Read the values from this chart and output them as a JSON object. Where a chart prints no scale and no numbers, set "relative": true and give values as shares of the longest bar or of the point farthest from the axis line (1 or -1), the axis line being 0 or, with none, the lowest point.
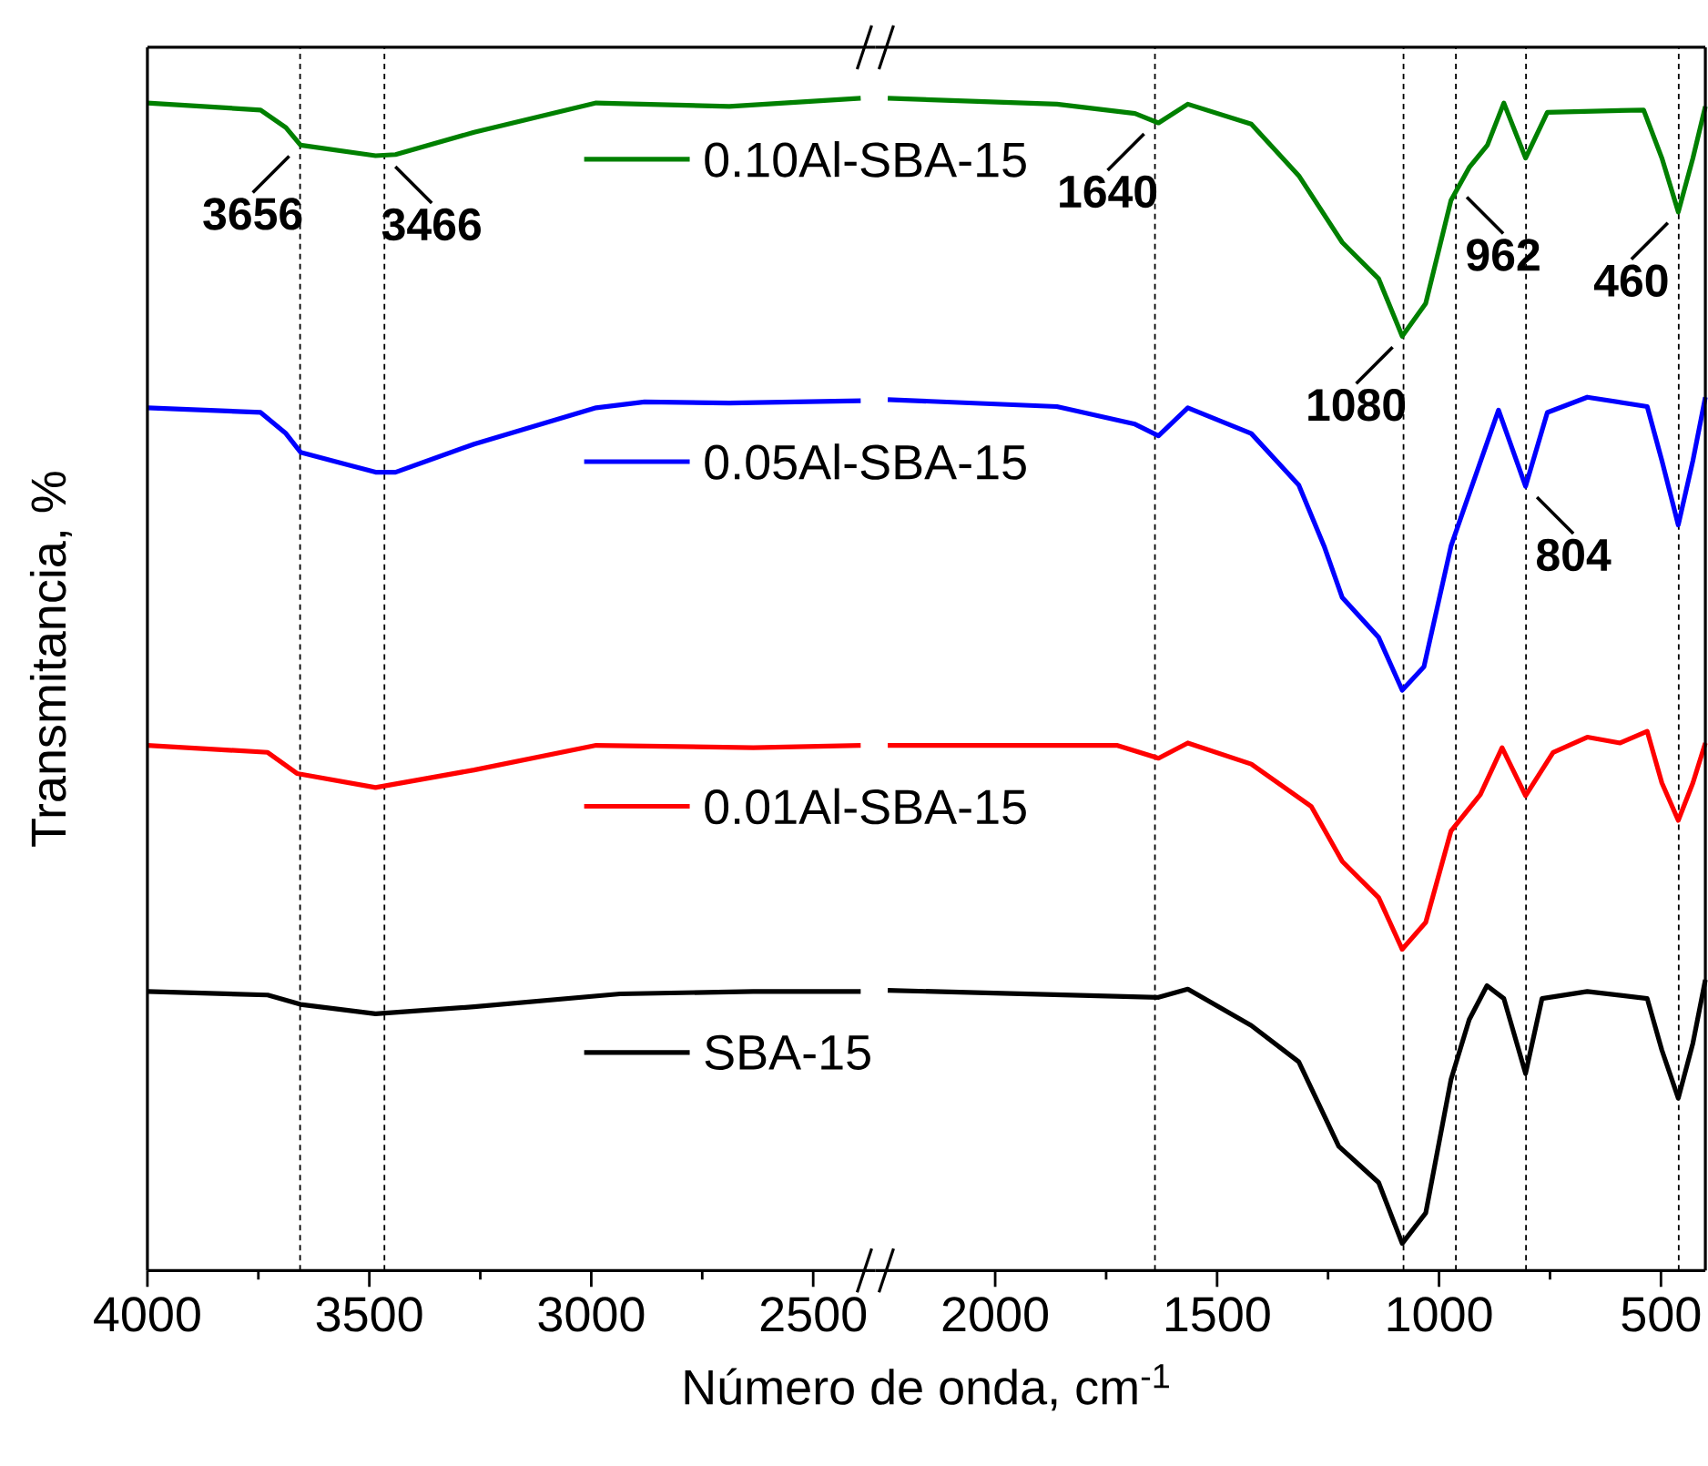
{
  "chart_data": [
    {
      "type": "line",
      "relative": true,
      "legend": "top",
      "ylabel": "Transmitancia, %",
      "xlim": [
        4000,
        2360
      ],
      "xticks": [
        4000,
        {
          "value": 3750,
          "label": null
        },
        3500,
        {
          "value": 3250,
          "label": null
        },
        3000,
        {
          "value": 2750,
          "label": null
        },
        2500
      ],
      "series": [
        {
          "name": "0.10Al-SBA-15",
          "color": "#008000",
          "x": [
            4000,
            3745,
            3688,
            3655,
            3486,
            3441,
            3264,
            2989,
            2689,
            2393
          ],
          "values": [
            0.996,
            0.99,
            0.975,
            0.96,
            0.951,
            0.952,
            0.971,
            0.996,
            0.993,
            1.0
          ]
        },
        {
          "name": "0.05Al-SBA-15",
          "color": "#0000ff",
          "x": [
            4000,
            3745,
            3688,
            3655,
            3486,
            3441,
            3264,
            2989,
            2880,
            2689,
            2393
          ],
          "values": [
            0.736,
            0.732,
            0.714,
            0.698,
            0.681,
            0.681,
            0.705,
            0.736,
            0.741,
            0.74,
            0.742
          ]
        },
        {
          "name": "0.01Al-SBA-15",
          "color": "#ff0000",
          "x": [
            4000,
            3729,
            3663,
            3486,
            3264,
            2989,
            2635,
            2393
          ],
          "values": [
            0.448,
            0.442,
            0.424,
            0.412,
            0.427,
            0.448,
            0.446,
            0.448
          ]
        },
        {
          "name": "SBA-15",
          "color": "#000000",
          "x": [
            4000,
            3729,
            3655,
            3486,
            3264,
            2935,
            2635,
            2393
          ],
          "values": [
            0.238,
            0.235,
            0.227,
            0.219,
            0.225,
            0.236,
            0.238,
            0.238
          ]
        }
      ],
      "ref_lines": [
        {
          "axis": "x",
          "value": 3656,
          "color": "#000000",
          "line_style": "dashed"
        },
        {
          "axis": "x",
          "value": 3466,
          "color": "#000000",
          "line_style": "dashed"
        }
      ],
      "annotations": [
        {
          "text": "3656",
          "x": 3656,
          "y": 0.96
        },
        {
          "text": "3466",
          "x": 3466,
          "y": 0.951
        }
      ]
    },
    {
      "type": "line",
      "relative": true,
      "xlabel": "Número de onda, cm$^{-1}$",
      "xlim": [
        2270,
        400
      ],
      "xticks": [
        2000,
        {
          "value": 1750,
          "label": null
        },
        1500,
        {
          "value": 1250,
          "label": null
        },
        1000,
        {
          "value": 750,
          "label": null
        },
        500
      ],
      "series": [
        {
          "color": "#008000",
          "x": [
            2242,
            1861,
            1685,
            1632,
            1566,
            1423,
            1316,
            1218,
            1136,
            1083,
            1030,
            973,
            932,
            891,
            854,
            805,
            756,
            539,
            498,
            461,
            428,
            400
          ],
          "values": [
            1.0,
            0.995,
            0.987,
            0.979,
            0.995,
            0.978,
            0.934,
            0.877,
            0.846,
            0.797,
            0.825,
            0.913,
            0.941,
            0.96,
            0.996,
            0.949,
            0.988,
            0.99,
            0.949,
            0.903,
            0.949,
            0.993
          ]
        },
        {
          "color": "#0000ff",
          "x": [
            2242,
            1861,
            1685,
            1632,
            1566,
            1423,
            1316,
            1259,
            1218,
            1136,
            1083,
            1034,
            973,
            940,
            866,
            805,
            756,
            666,
            531,
            498,
            461,
            428,
            400
          ],
          "values": [
            0.743,
            0.737,
            0.722,
            0.712,
            0.736,
            0.714,
            0.67,
            0.618,
            0.574,
            0.54,
            0.495,
            0.515,
            0.618,
            0.654,
            0.734,
            0.669,
            0.732,
            0.745,
            0.737,
            0.691,
            0.636,
            0.691,
            0.745
          ]
        },
        {
          "color": "#ff0000",
          "x": [
            2242,
            1726,
            1632,
            1566,
            1423,
            1288,
            1218,
            1136,
            1083,
            1030,
            973,
            907,
            858,
            805,
            743,
            666,
            592,
            531,
            498,
            461,
            428,
            400
          ],
          "values": [
            0.448,
            0.448,
            0.437,
            0.45,
            0.432,
            0.396,
            0.349,
            0.318,
            0.274,
            0.297,
            0.375,
            0.406,
            0.446,
            0.405,
            0.442,
            0.455,
            0.45,
            0.46,
            0.416,
            0.384,
            0.416,
            0.45
          ]
        },
        {
          "color": "#000000",
          "x": [
            2242,
            1632,
            1566,
            1423,
            1316,
            1226,
            1136,
            1083,
            1030,
            973,
            932,
            892,
            854,
            805,
            768,
            666,
            531,
            498,
            461,
            428,
            400
          ],
          "values": [
            0.239,
            0.233,
            0.24,
            0.209,
            0.178,
            0.106,
            0.075,
            0.023,
            0.049,
            0.163,
            0.214,
            0.243,
            0.232,
            0.168,
            0.232,
            0.238,
            0.232,
            0.188,
            0.147,
            0.194,
            0.248
          ]
        }
      ],
      "ref_lines": [
        {
          "axis": "x",
          "value": 1640,
          "color": "#000000",
          "line_style": "dashed"
        },
        {
          "axis": "x",
          "value": 1080,
          "color": "#000000",
          "line_style": "dashed"
        },
        {
          "axis": "x",
          "value": 962,
          "color": "#000000",
          "line_style": "dashed"
        },
        {
          "axis": "x",
          "value": 804,
          "color": "#000000",
          "line_style": "dashed"
        },
        {
          "axis": "x",
          "value": 460,
          "color": "#000000",
          "line_style": "dashed"
        }
      ],
      "annotations": [
        {
          "text": "1640",
          "x": 1640,
          "y": 0.979
        },
        {
          "text": "1080",
          "x": 1080,
          "y": 0.797
        },
        {
          "text": "962",
          "x": 962,
          "y": 0.925
        },
        {
          "text": "460",
          "x": 460,
          "y": 0.903
        },
        {
          "text": "804",
          "x": 804,
          "y": 0.669
        }
      ]
    }
  ]
}
